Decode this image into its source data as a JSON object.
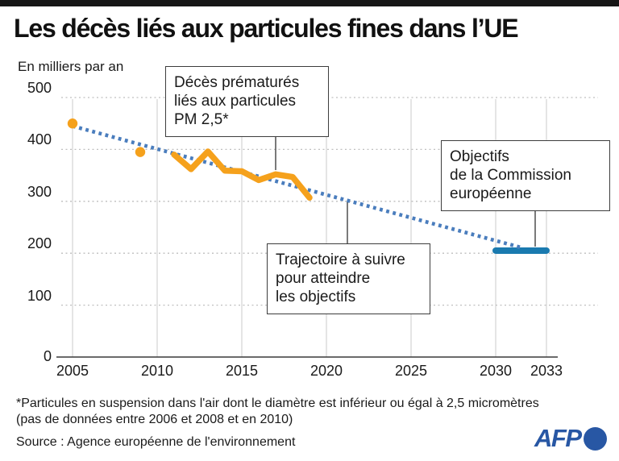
{
  "header": {
    "title": "Les décès liés aux particules fines dans l’UE",
    "unit_label": "En milliers par an"
  },
  "annotations": {
    "series_box": "Décès prématurés\nliés aux particules\nPM 2,5*",
    "target_box": "Objectifs\nde la Commission\neuropéenne",
    "trajectory_box": "Trajectoire à suivre\npour atteindre\nles objectifs"
  },
  "footer": {
    "footnote_line1": "*Particules en suspension dans l'air dont le diamètre est inférieur ou égal à 2,5 micromètres",
    "footnote_line2": "(pas de données entre 2006 et 2008 et en 2010)",
    "source": "Source : Agence européenne de l'environnement",
    "logo": "AFP"
  },
  "colors": {
    "observed_orange": "#F5A11C",
    "trajectory_blue": "#4A7DBD",
    "target_blue": "#1A7AAF",
    "afp_blue": "#2857A4",
    "gridline_gray": "#d7d7d7",
    "axis_dark": "#3a3a3a"
  },
  "chart_data": {
    "type": "line",
    "title": "Les décès liés aux particules fines dans l’UE",
    "xlabel": "",
    "ylabel": "En milliers par an",
    "ylim": [
      0,
      500
    ],
    "xlim": [
      2004,
      2034
    ],
    "yticks": [
      0,
      100,
      200,
      300,
      400,
      500
    ],
    "xticks": [
      2005,
      2010,
      2015,
      2020,
      2025,
      2030,
      2033
    ],
    "grid": "horizontal-dotted and vertical-solid-light",
    "legend_position": "annotated boxes with callout lines",
    "series": [
      {
        "name": "Décès prématurés liés aux particules PM 2,5*",
        "type": "solid-line-with-isolated-markers",
        "color": "#F5A11C",
        "markers": [
          [
            2005,
            450
          ],
          [
            2009,
            395
          ]
        ],
        "line": [
          [
            2011,
            390
          ],
          [
            2012,
            362
          ],
          [
            2013,
            396
          ],
          [
            2014,
            359
          ],
          [
            2015,
            358
          ],
          [
            2016,
            341
          ],
          [
            2017,
            352
          ],
          [
            2018,
            347
          ],
          [
            2019,
            307
          ]
        ]
      },
      {
        "name": "Trajectoire à suivre pour atteindre les objectifs",
        "type": "dotted-line",
        "color": "#4A7DBD",
        "line": [
          [
            2005,
            445
          ],
          [
            2031.5,
            211
          ]
        ]
      },
      {
        "name": "Objectifs de la Commission européenne",
        "type": "thick-line",
        "color": "#1A7AAF",
        "line": [
          [
            2030,
            205
          ],
          [
            2033,
            205
          ]
        ]
      }
    ]
  }
}
